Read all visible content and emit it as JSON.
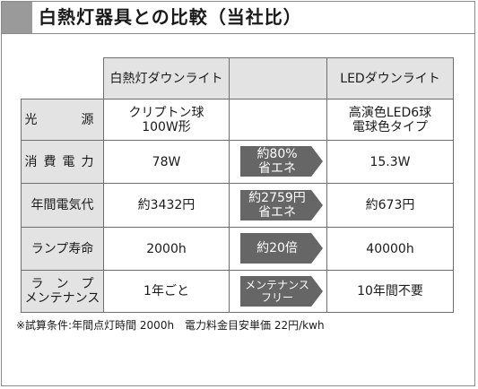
{
  "title": "白熱灯器具との比較（当社比）",
  "header": {
    "col_incandescent": "白熱灯ダウンライト",
    "col_led": "LEDダウンライト"
  },
  "rows": [
    {
      "label": "光　　源",
      "incandescent": "クリプトン球\n100W形",
      "comparison": "",
      "led": "高演色LED6球\n電球色タイプ"
    },
    {
      "label": "消費電力",
      "incandescent": "78W",
      "comparison": "約80%\n省エネ",
      "led": "15.3W"
    },
    {
      "label": "年間電気代",
      "incandescent": "約3432円",
      "comparison": "約2759円\n省エネ",
      "led": "約673円"
    },
    {
      "label": "ランプ寿命",
      "incandescent": "2000h",
      "comparison": "約20倍",
      "led": "40000h"
    },
    {
      "label": "ラ　ン　プ\nメンテナンス",
      "incandescent": "1年ごと",
      "comparison": "メンテナンス\nフリー",
      "led": "10年間不要"
    }
  ],
  "footnote": "※試算条件:年間点灯時間 2000h　電力料金目安単価 22円/kwh",
  "colors": {
    "header_bg": "#e3e3e3",
    "arrow_bg": "#666666",
    "title_accent": "#9a9a9a"
  }
}
